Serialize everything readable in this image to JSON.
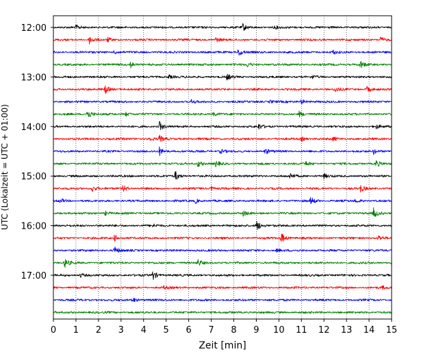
{
  "chart_data": {
    "type": "line",
    "xlabel": "Zeit  [min]",
    "ylabel": "UTC (Lokalzeit = UTC + 01:00)",
    "xlim": [
      0,
      15
    ],
    "x_ticks": [
      "0",
      "1",
      "2",
      "3",
      "4",
      "5",
      "6",
      "7",
      "8",
      "9",
      "10",
      "11",
      "12",
      "13",
      "14",
      "15"
    ],
    "y_ticks": [
      "12:00",
      "13:00",
      "14:00",
      "15:00",
      "16:00",
      "17:00"
    ],
    "grid": "vertical dotted",
    "trace_interval_min": 15,
    "colors": [
      "#000000",
      "#ff0000",
      "#0000ff",
      "#008000"
    ],
    "traces": [
      {
        "start": "12:00",
        "color": "#000000",
        "events": [
          {
            "t": 1.0,
            "a": 3
          },
          {
            "t": 8.4,
            "a": 5
          },
          {
            "t": 9.8,
            "a": 2
          }
        ]
      },
      {
        "start": "12:15",
        "color": "#ff0000",
        "events": [
          {
            "t": 1.6,
            "a": 6
          },
          {
            "t": 2.4,
            "a": 3
          },
          {
            "t": 7.2,
            "a": 3
          },
          {
            "t": 14.5,
            "a": 4
          }
        ]
      },
      {
        "start": "12:30",
        "color": "#0000ff",
        "events": [
          {
            "t": 2.7,
            "a": 3
          },
          {
            "t": 8.2,
            "a": 6
          },
          {
            "t": 12.4,
            "a": 3
          }
        ]
      },
      {
        "start": "12:45",
        "color": "#008000",
        "events": [
          {
            "t": 3.4,
            "a": 5
          },
          {
            "t": 8.6,
            "a": 3
          },
          {
            "t": 13.6,
            "a": 6
          }
        ]
      },
      {
        "start": "13:00",
        "color": "#000000",
        "events": [
          {
            "t": 5.1,
            "a": 3
          },
          {
            "t": 7.7,
            "a": 4
          },
          {
            "t": 11.5,
            "a": 2
          }
        ]
      },
      {
        "start": "13:15",
        "color": "#ff0000",
        "events": [
          {
            "t": 2.3,
            "a": 7
          },
          {
            "t": 12.5,
            "a": 4
          },
          {
            "t": 13.9,
            "a": 4
          }
        ]
      },
      {
        "start": "13:30",
        "color": "#0000ff",
        "events": [
          {
            "t": 6.1,
            "a": 3
          },
          {
            "t": 9.6,
            "a": 2
          },
          {
            "t": 11.0,
            "a": 3
          }
        ]
      },
      {
        "start": "13:45",
        "color": "#008000",
        "events": [
          {
            "t": 1.5,
            "a": 8
          },
          {
            "t": 3.2,
            "a": 3
          },
          {
            "t": 7.1,
            "a": 3
          },
          {
            "t": 10.9,
            "a": 4
          }
        ]
      },
      {
        "start": "14:00",
        "color": "#000000",
        "events": [
          {
            "t": 4.7,
            "a": 7
          },
          {
            "t": 9.1,
            "a": 4
          },
          {
            "t": 14.3,
            "a": 3
          }
        ]
      },
      {
        "start": "14:15",
        "color": "#ff0000",
        "events": [
          {
            "t": 4.2,
            "a": 4
          },
          {
            "t": 4.7,
            "a": 5
          },
          {
            "t": 11.0,
            "a": 3
          },
          {
            "t": 12.4,
            "a": 3
          }
        ]
      },
      {
        "start": "14:30",
        "color": "#0000ff",
        "events": [
          {
            "t": 4.7,
            "a": 6
          },
          {
            "t": 7.4,
            "a": 3
          },
          {
            "t": 9.4,
            "a": 4
          },
          {
            "t": 14.2,
            "a": 4
          }
        ]
      },
      {
        "start": "14:45",
        "color": "#008000",
        "events": [
          {
            "t": 6.4,
            "a": 5
          },
          {
            "t": 7.2,
            "a": 4
          },
          {
            "t": 11.2,
            "a": 3
          },
          {
            "t": 14.3,
            "a": 5
          }
        ]
      },
      {
        "start": "15:00",
        "color": "#000000",
        "events": [
          {
            "t": 5.4,
            "a": 7
          },
          {
            "t": 10.5,
            "a": 4
          },
          {
            "t": 12.0,
            "a": 3
          }
        ]
      },
      {
        "start": "15:15",
        "color": "#ff0000",
        "events": [
          {
            "t": 1.7,
            "a": 5
          },
          {
            "t": 3.1,
            "a": 5
          },
          {
            "t": 7.0,
            "a": 3
          },
          {
            "t": 13.6,
            "a": 6
          }
        ]
      },
      {
        "start": "15:30",
        "color": "#0000ff",
        "events": [
          {
            "t": 0.3,
            "a": 3
          },
          {
            "t": 6.3,
            "a": 3
          },
          {
            "t": 11.4,
            "a": 6
          },
          {
            "t": 13.4,
            "a": 3
          }
        ]
      },
      {
        "start": "15:45",
        "color": "#008000",
        "events": [
          {
            "t": 2.3,
            "a": 3
          },
          {
            "t": 8.4,
            "a": 4
          },
          {
            "t": 14.2,
            "a": 7
          }
        ]
      },
      {
        "start": "16:00",
        "color": "#000000",
        "events": [
          {
            "t": 4.4,
            "a": 2
          },
          {
            "t": 9.0,
            "a": 9
          }
        ]
      },
      {
        "start": "16:15",
        "color": "#ff0000",
        "events": [
          {
            "t": 2.7,
            "a": 5
          },
          {
            "t": 10.1,
            "a": 8
          },
          {
            "t": 14.4,
            "a": 4
          }
        ]
      },
      {
        "start": "16:30",
        "color": "#0000ff",
        "events": [
          {
            "t": 2.7,
            "a": 6
          },
          {
            "t": 9.9,
            "a": 2
          }
        ]
      },
      {
        "start": "16:45",
        "color": "#008000",
        "events": [
          {
            "t": 0.5,
            "a": 7
          },
          {
            "t": 6.4,
            "a": 5
          },
          {
            "t": 15.0,
            "a": 3
          }
        ]
      },
      {
        "start": "17:00",
        "color": "#000000",
        "events": [
          {
            "t": 1.2,
            "a": 3
          },
          {
            "t": 4.4,
            "a": 7
          }
        ]
      },
      {
        "start": "17:15",
        "color": "#ff0000",
        "events": [
          {
            "t": 4.9,
            "a": 2
          },
          {
            "t": 14.6,
            "a": 2
          }
        ]
      },
      {
        "start": "17:30",
        "color": "#0000ff",
        "events": [
          {
            "t": 3.5,
            "a": 4
          }
        ]
      },
      {
        "start": "17:45",
        "color": "#008000",
        "events": []
      }
    ]
  }
}
